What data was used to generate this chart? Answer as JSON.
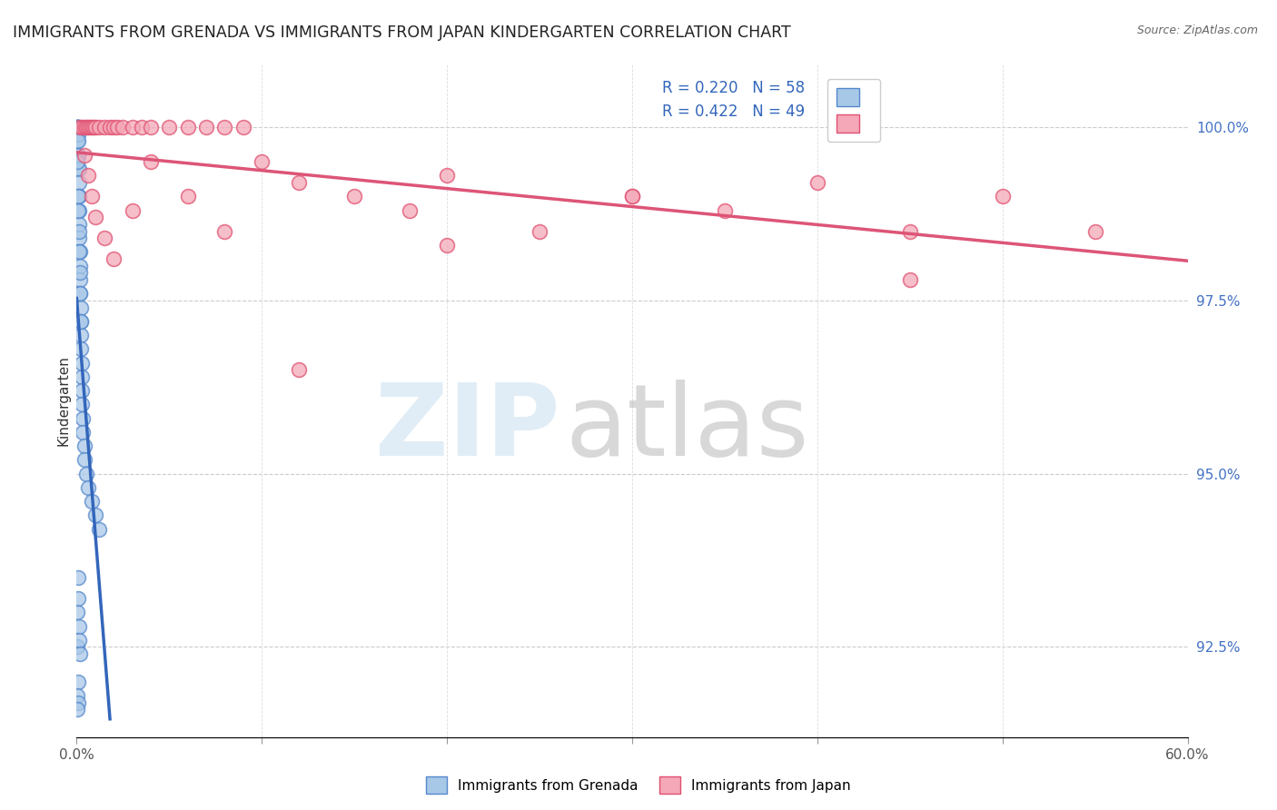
{
  "title": "IMMIGRANTS FROM GRENADA VS IMMIGRANTS FROM JAPAN KINDERGARTEN CORRELATION CHART",
  "source": "Source: ZipAtlas.com",
  "ylabel": "Kindergarten",
  "yticks": [
    92.5,
    95.0,
    97.5,
    100.0
  ],
  "xlim": [
    0.0,
    60.0
  ],
  "ylim": [
    91.2,
    100.9
  ],
  "legend_r1": "R = 0.220",
  "legend_n1": "N = 58",
  "legend_r2": "R = 0.422",
  "legend_n2": "N = 49",
  "legend_label1": "Immigrants from Grenada",
  "legend_label2": "Immigrants from Japan",
  "grenada_color": "#a8c8e8",
  "japan_color": "#f4a8b8",
  "grenada_edge": "#5588cc",
  "japan_edge": "#e05070",
  "trendline_grenada": "#3366bb",
  "trendline_japan": "#dd5577",
  "grenada_x": [
    0.05,
    0.05,
    0.05,
    0.05,
    0.05,
    0.08,
    0.08,
    0.08,
    0.1,
    0.1,
    0.1,
    0.1,
    0.12,
    0.12,
    0.12,
    0.15,
    0.15,
    0.15,
    0.18,
    0.18,
    0.2,
    0.2,
    0.22,
    0.22,
    0.25,
    0.25,
    0.28,
    0.28,
    0.3,
    0.3,
    0.35,
    0.35,
    0.4,
    0.4,
    0.5,
    0.6,
    0.8,
    1.0,
    1.2,
    0.05,
    0.08,
    0.1,
    0.12,
    0.15,
    0.18,
    0.2,
    0.22,
    0.08,
    0.05,
    0.1,
    0.05,
    0.08,
    0.12,
    0.15,
    0.18,
    0.05,
    0.08,
    0.05
  ],
  "grenada_y": [
    100.0,
    100.0,
    100.0,
    100.0,
    99.8,
    100.0,
    99.6,
    99.4,
    100.0,
    99.9,
    99.8,
    99.6,
    99.4,
    99.2,
    99.0,
    98.8,
    98.6,
    98.4,
    98.2,
    98.0,
    97.8,
    97.6,
    97.4,
    97.2,
    97.0,
    96.8,
    96.6,
    96.4,
    96.2,
    96.0,
    95.8,
    95.6,
    95.4,
    95.2,
    95.0,
    94.8,
    94.6,
    94.4,
    94.2,
    99.5,
    99.0,
    98.8,
    98.5,
    98.2,
    97.9,
    97.6,
    97.2,
    93.5,
    93.0,
    93.2,
    92.5,
    92.0,
    92.8,
    92.6,
    92.4,
    91.8,
    91.7,
    91.6
  ],
  "japan_x": [
    0.2,
    0.3,
    0.4,
    0.5,
    0.6,
    0.7,
    0.8,
    0.9,
    1.0,
    1.2,
    1.5,
    1.8,
    2.0,
    2.2,
    2.5,
    3.0,
    3.5,
    4.0,
    5.0,
    6.0,
    7.0,
    8.0,
    9.0,
    10.0,
    12.0,
    15.0,
    18.0,
    20.0,
    25.0,
    30.0,
    35.0,
    40.0,
    45.0,
    50.0,
    55.0,
    0.4,
    0.6,
    0.8,
    1.0,
    1.5,
    2.0,
    3.0,
    4.0,
    6.0,
    8.0,
    12.0,
    20.0,
    30.0,
    45.0
  ],
  "japan_y": [
    100.0,
    100.0,
    100.0,
    100.0,
    100.0,
    100.0,
    100.0,
    100.0,
    100.0,
    100.0,
    100.0,
    100.0,
    100.0,
    100.0,
    100.0,
    100.0,
    100.0,
    100.0,
    100.0,
    100.0,
    100.0,
    100.0,
    100.0,
    99.5,
    99.2,
    99.0,
    98.8,
    99.3,
    98.5,
    99.0,
    98.8,
    99.2,
    98.5,
    99.0,
    98.5,
    99.6,
    99.3,
    99.0,
    98.7,
    98.4,
    98.1,
    98.8,
    99.5,
    99.0,
    98.5,
    96.5,
    98.3,
    99.0,
    97.8
  ]
}
